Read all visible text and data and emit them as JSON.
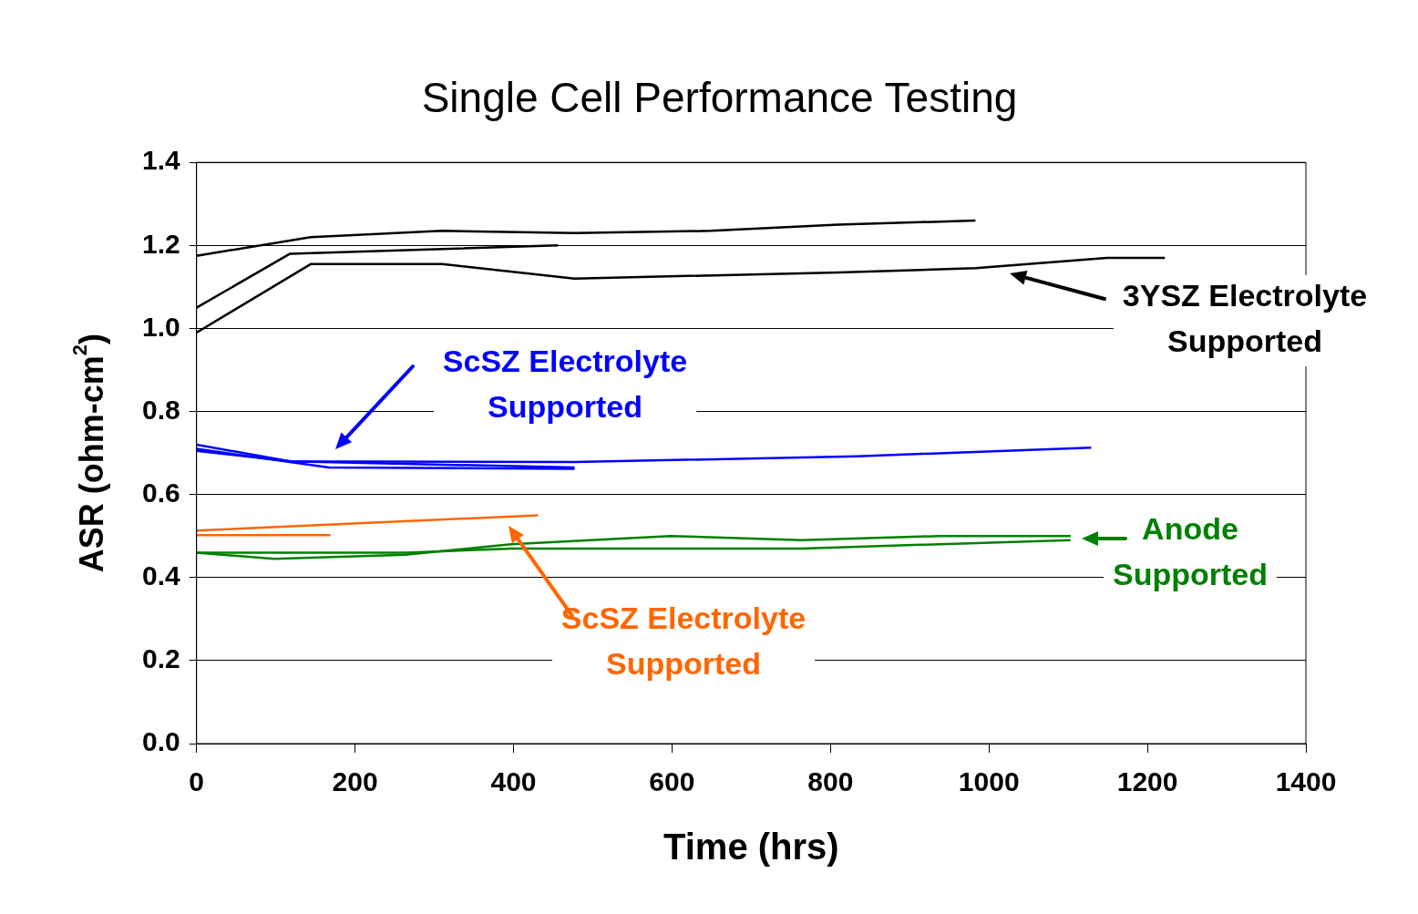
{
  "chart_data": {
    "type": "line",
    "title": "Single Cell Performance Testing",
    "xlabel": "Time (hrs)",
    "ylabel": "ASR (ohm-cm$^{2}$)",
    "xlim": [
      0,
      1400
    ],
    "xticks": [
      0,
      200,
      400,
      600,
      800,
      1000,
      1200,
      1400
    ],
    "ylim": [
      0,
      1.4
    ],
    "yticks": [
      {
        "value": 0,
        "label": "0.0"
      },
      0.2,
      0.4,
      0.6,
      0.8,
      {
        "value": 1,
        "label": "1.0"
      },
      1.2,
      1.4
    ],
    "grid": "y",
    "legend": false,
    "marker": "none",
    "line_style": "solid",
    "series": [
      {
        "color": "#000000",
        "x": [
          0,
          144,
          310,
          477,
          649,
          810,
          983
        ],
        "values": [
          1.175,
          1.22,
          1.235,
          1.23,
          1.235,
          1.25,
          1.26
        ]
      },
      {
        "color": "#000000",
        "x": [
          0,
          118,
          456
        ],
        "values": [
          1.05,
          1.18,
          1.2
        ]
      },
      {
        "color": "#000000",
        "x": [
          0,
          144,
          310,
          477,
          810,
          983,
          1149,
          1222
        ],
        "values": [
          0.99,
          1.155,
          1.155,
          1.12,
          1.135,
          1.145,
          1.17,
          1.17
        ]
      },
      {
        "color": "#0000ff",
        "x": [
          0,
          118,
          477
        ],
        "values": [
          0.72,
          0.68,
          0.665
        ]
      },
      {
        "color": "#0000ff",
        "x": [
          0,
          167,
          477
        ],
        "values": [
          0.71,
          0.665,
          0.662
        ]
      },
      {
        "color": "#0000ff",
        "x": [
          0,
          118,
          477,
          833,
          1129
        ],
        "values": [
          0.705,
          0.68,
          0.678,
          0.692,
          0.713
        ]
      },
      {
        "color": "#ff6600",
        "x": [
          0,
          431
        ],
        "values": [
          0.513,
          0.55
        ]
      },
      {
        "color": "#ff6600",
        "x": [
          0,
          169
        ],
        "values": [
          0.502,
          0.502
        ]
      },
      {
        "color": "#008000",
        "x": [
          0,
          98,
          264,
          397,
          598,
          764,
          937,
          1103
        ],
        "values": [
          0.46,
          0.445,
          0.455,
          0.48,
          0.5,
          0.49,
          0.5,
          0.5
        ]
      },
      {
        "color": "#008000",
        "x": [
          0,
          264,
          397,
          764,
          1103
        ],
        "values": [
          0.46,
          0.46,
          0.47,
          0.47,
          0.49
        ]
      }
    ],
    "annotations": [
      "3YSZ Electrolyte Supported",
      "ScSZ Electrolyte Supported",
      "ScSZ Electrolyte Supported",
      "Anode Supported"
    ]
  }
}
